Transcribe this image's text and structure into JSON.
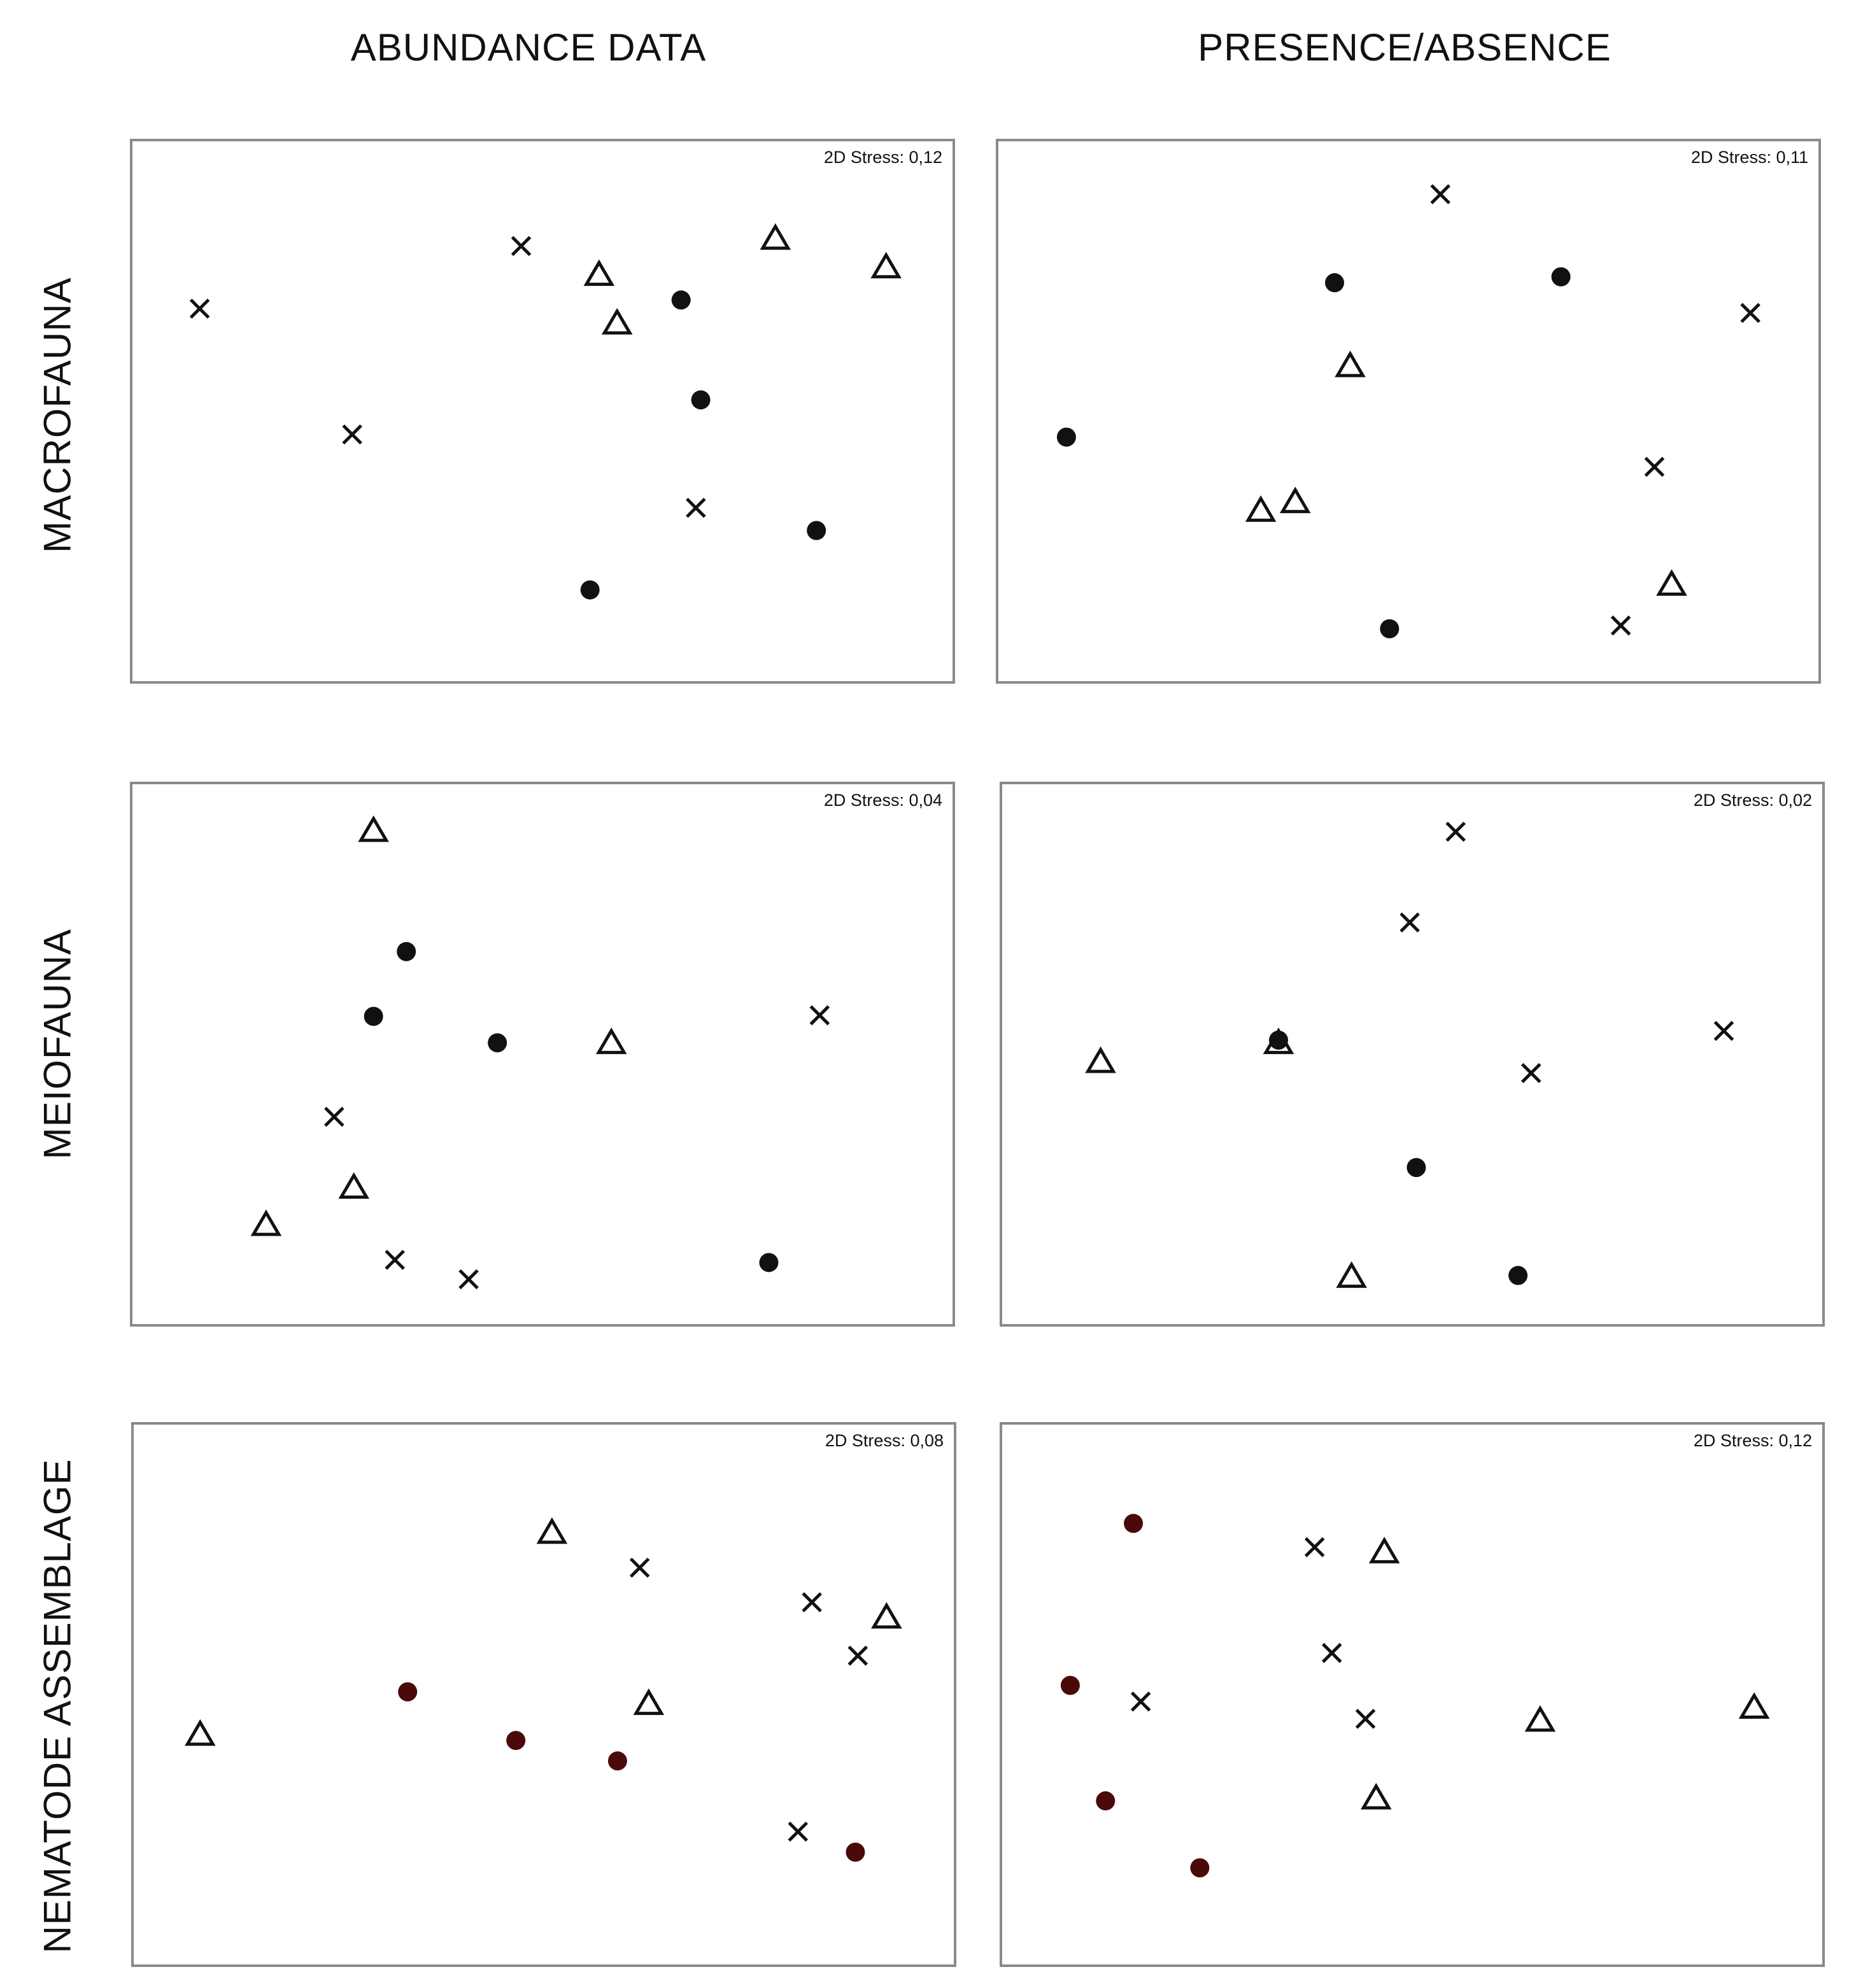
{
  "column_titles": {
    "abundance": "ABUNDANCE DATA",
    "presence": "PRESENCE/ABSENCE"
  },
  "row_titles": {
    "macrofauna": "MACROFAUNA",
    "meiofauna": "MEIOFAUNA",
    "nematode": "NEMATODE ASSEMBLAGE"
  },
  "colors": {
    "frame": "#8a8a8a",
    "marker": "#111111",
    "nematode_dot": "#4a0a0a"
  },
  "chart_data": [
    {
      "id": "macro-abundance",
      "type": "scatter",
      "title": "",
      "xlabel": "",
      "ylabel": "",
      "stress_label": "2D Stress: 0,12",
      "xlim": [
        0,
        100
      ],
      "ylim": [
        0,
        100
      ],
      "dot_color": "#111111",
      "series": [
        {
          "name": "dots",
          "marker": "circle",
          "points": [
            [
              66.9,
              70.6
            ],
            [
              69.3,
              52.1
            ],
            [
              83.4,
              27.9
            ],
            [
              55.8,
              16.9
            ]
          ]
        },
        {
          "name": "triangles",
          "marker": "triangle",
          "points": [
            [
              56.9,
              75.3
            ],
            [
              78.4,
              82.0
            ],
            [
              91.9,
              76.7
            ],
            [
              59.1,
              66.3
            ]
          ]
        },
        {
          "name": "crosses",
          "marker": "cross",
          "points": [
            [
              8.2,
              69.0
            ],
            [
              47.4,
              80.6
            ],
            [
              26.8,
              45.7
            ],
            [
              68.7,
              32.1
            ]
          ]
        }
      ]
    },
    {
      "id": "macro-presence",
      "type": "scatter",
      "title": "",
      "xlabel": "",
      "ylabel": "",
      "stress_label": "2D Stress: 0,11",
      "xlim": [
        0,
        100
      ],
      "ylim": [
        0,
        100
      ],
      "dot_color": "#111111",
      "series": [
        {
          "name": "dots",
          "marker": "circle",
          "points": [
            [
              41.0,
              73.8
            ],
            [
              68.6,
              74.9
            ],
            [
              8.3,
              45.2
            ],
            [
              47.7,
              9.7
            ]
          ]
        },
        {
          "name": "triangles",
          "marker": "triangle",
          "points": [
            [
              42.9,
              58.4
            ],
            [
              32.0,
              31.6
            ],
            [
              36.2,
              33.2
            ],
            [
              82.1,
              17.9
            ]
          ]
        },
        {
          "name": "crosses",
          "marker": "cross",
          "points": [
            [
              53.9,
              90.2
            ],
            [
              91.7,
              68.2
            ],
            [
              80.0,
              39.7
            ],
            [
              75.9,
              10.3
            ]
          ]
        }
      ]
    },
    {
      "id": "meio-abundance",
      "type": "scatter",
      "title": "",
      "xlabel": "",
      "ylabel": "",
      "stress_label": "2D Stress: 0,04",
      "xlim": [
        0,
        100
      ],
      "ylim": [
        0,
        100
      ],
      "dot_color": "#111111",
      "series": [
        {
          "name": "dots",
          "marker": "circle",
          "points": [
            [
              33.4,
              69.0
            ],
            [
              29.4,
              57.0
            ],
            [
              44.5,
              52.1
            ],
            [
              77.6,
              11.4
            ]
          ]
        },
        {
          "name": "triangles",
          "marker": "triangle",
          "points": [
            [
              29.4,
              91.4
            ],
            [
              58.4,
              52.1
            ],
            [
              27.0,
              25.3
            ],
            [
              16.3,
              18.4
            ]
          ]
        },
        {
          "name": "crosses",
          "marker": "cross",
          "points": [
            [
              83.8,
              57.2
            ],
            [
              24.6,
              38.4
            ],
            [
              32.0,
              11.9
            ],
            [
              41.0,
              8.3
            ]
          ]
        }
      ]
    },
    {
      "id": "meio-presence",
      "type": "scatter",
      "title": "",
      "xlabel": "",
      "ylabel": "",
      "stress_label": "2D Stress: 0,02",
      "xlim": [
        0,
        100
      ],
      "ylim": [
        0,
        100
      ],
      "dot_color": "#111111",
      "series": [
        {
          "name": "dots",
          "marker": "circle",
          "points": [
            [
              33.7,
              52.6
            ],
            [
              50.5,
              29.0
            ],
            [
              62.9,
              9.0
            ]
          ]
        },
        {
          "name": "triangles",
          "marker": "triangle",
          "points": [
            [
              12.0,
              48.6
            ],
            [
              33.7,
              52.1
            ],
            [
              42.6,
              8.8
            ]
          ]
        },
        {
          "name": "crosses",
          "marker": "cross",
          "points": [
            [
              55.3,
              91.2
            ],
            [
              49.7,
              74.4
            ],
            [
              88.0,
              54.3
            ],
            [
              64.5,
              46.5
            ]
          ]
        }
      ]
    },
    {
      "id": "nema-abundance",
      "type": "scatter",
      "title": "",
      "xlabel": "",
      "ylabel": "",
      "stress_label": "2D Stress: 0,08",
      "xlim": [
        0,
        100
      ],
      "ylim": [
        0,
        100
      ],
      "dot_color": "#4a0a0a",
      "series": [
        {
          "name": "dots",
          "marker": "circle",
          "points": [
            [
              33.4,
              50.5
            ],
            [
              46.6,
              41.5
            ],
            [
              59.0,
              37.7
            ],
            [
              88.0,
              20.8
            ]
          ]
        },
        {
          "name": "triangles",
          "marker": "triangle",
          "points": [
            [
              51.0,
              80.0
            ],
            [
              91.8,
              64.3
            ],
            [
              62.8,
              48.3
            ],
            [
              8.1,
              42.6
            ]
          ]
        },
        {
          "name": "crosses",
          "marker": "cross",
          "points": [
            [
              61.7,
              73.5
            ],
            [
              82.7,
              67.1
            ],
            [
              88.3,
              57.2
            ],
            [
              81.0,
              24.6
            ]
          ]
        }
      ]
    },
    {
      "id": "nema-presence",
      "type": "scatter",
      "title": "",
      "xlabel": "",
      "ylabel": "",
      "stress_label": "2D Stress: 0,12",
      "xlim": [
        0,
        100
      ],
      "ylim": [
        0,
        100
      ],
      "dot_color": "#4a0a0a",
      "series": [
        {
          "name": "dots",
          "marker": "circle",
          "points": [
            [
              16.0,
              81.7
            ],
            [
              8.3,
              51.7
            ],
            [
              12.6,
              30.3
            ],
            [
              24.1,
              17.9
            ]
          ]
        },
        {
          "name": "triangles",
          "marker": "triangle",
          "points": [
            [
              46.6,
              76.4
            ],
            [
              65.6,
              45.2
            ],
            [
              91.7,
              47.6
            ],
            [
              45.6,
              30.8
            ]
          ]
        },
        {
          "name": "crosses",
          "marker": "cross",
          "points": [
            [
              38.1,
              77.3
            ],
            [
              40.2,
              57.7
            ],
            [
              16.9,
              48.7
            ],
            [
              44.3,
              45.5
            ]
          ]
        }
      ]
    }
  ]
}
